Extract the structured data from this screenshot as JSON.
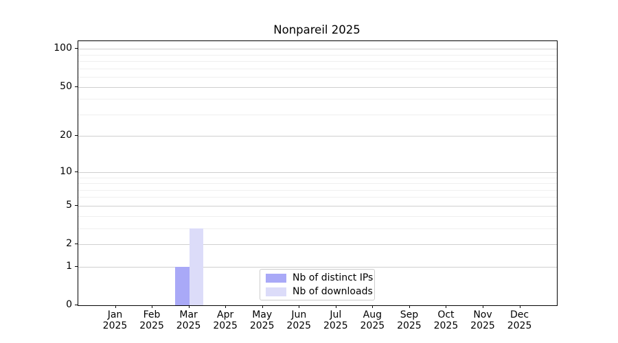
{
  "chart_data": {
    "type": "bar",
    "title": "Nonpareil 2025",
    "categories": [
      "Jan",
      "Feb",
      "Mar",
      "Apr",
      "May",
      "Jun",
      "Jul",
      "Aug",
      "Sep",
      "Oct",
      "Nov",
      "Dec"
    ],
    "year_label": "2025",
    "series": [
      {
        "name": "Nb of distinct IPs",
        "color": "#a9a9f7",
        "values": [
          0,
          0,
          1,
          0,
          0,
          0,
          0,
          0,
          0,
          0,
          0,
          0
        ]
      },
      {
        "name": "Nb of downloads",
        "color": "#dcdcf9",
        "values": [
          0,
          0,
          3,
          0,
          0,
          0,
          0,
          0,
          0,
          0,
          0,
          0
        ]
      }
    ],
    "xlabel": "",
    "ylabel": "",
    "yscale": "log1p",
    "ylim": [
      0,
      115
    ],
    "yticks": [
      0,
      1,
      2,
      5,
      10,
      20,
      50,
      100
    ],
    "minor_gridlines": [
      3,
      4,
      6,
      7,
      8,
      9,
      30,
      40,
      60,
      70,
      80,
      90
    ],
    "grid": true,
    "legend_position": "lower center"
  }
}
